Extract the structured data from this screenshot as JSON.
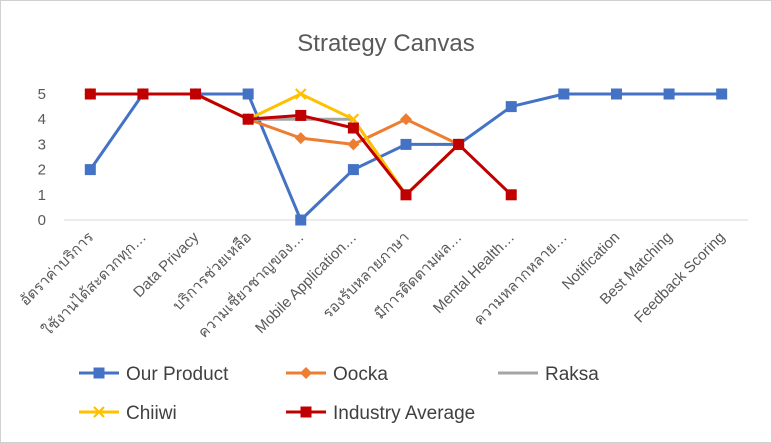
{
  "chart_data": {
    "type": "line",
    "title": "Strategy Canvas",
    "xlabel": "",
    "ylabel": "",
    "ylim": [
      0,
      5
    ],
    "yticks": [
      0,
      1,
      2,
      3,
      4,
      5
    ],
    "grid": false,
    "legend_position": "bottom",
    "categories": [
      "อัตราค่าบริการ",
      "ใช้งานได้สะดวกทุก…",
      "Data Privacy",
      "บริการช่วยเหลือ",
      "ความเชี่ยวชาญของ…",
      "Mobile Application…",
      "รองรับหลายภาษา",
      "มีการติดตามผล…",
      "Mental Health…",
      "ความหลากหลาย…",
      "Notification",
      "Best Matching",
      "Feedback Scoring"
    ],
    "series": [
      {
        "name": "Our Product",
        "color": "#4472C4",
        "marker": "square",
        "values": [
          2,
          5,
          5,
          5,
          0,
          2,
          3,
          3,
          4.5,
          5,
          5,
          5,
          5
        ]
      },
      {
        "name": "Oocka",
        "color": "#ED7D31",
        "marker": "diamond",
        "values": [
          5,
          5,
          5,
          4,
          3.25,
          3,
          4,
          3,
          null,
          null,
          null,
          null,
          null
        ]
      },
      {
        "name": "Raksa",
        "color": "#A5A5A5",
        "marker": "none",
        "values": [
          5,
          5,
          5,
          4,
          4,
          4,
          1,
          3,
          null,
          null,
          null,
          null,
          null
        ]
      },
      {
        "name": "Chiiwi",
        "color": "#FFC000",
        "marker": "x",
        "values": [
          5,
          5,
          5,
          4,
          5,
          4,
          1,
          3,
          null,
          null,
          null,
          null,
          null
        ]
      },
      {
        "name": "Industry Average",
        "color": "#C00000",
        "marker": "square",
        "values": [
          5,
          5,
          5,
          4,
          4.15,
          3.65,
          1,
          3,
          1,
          null,
          null,
          null,
          null
        ]
      }
    ]
  }
}
